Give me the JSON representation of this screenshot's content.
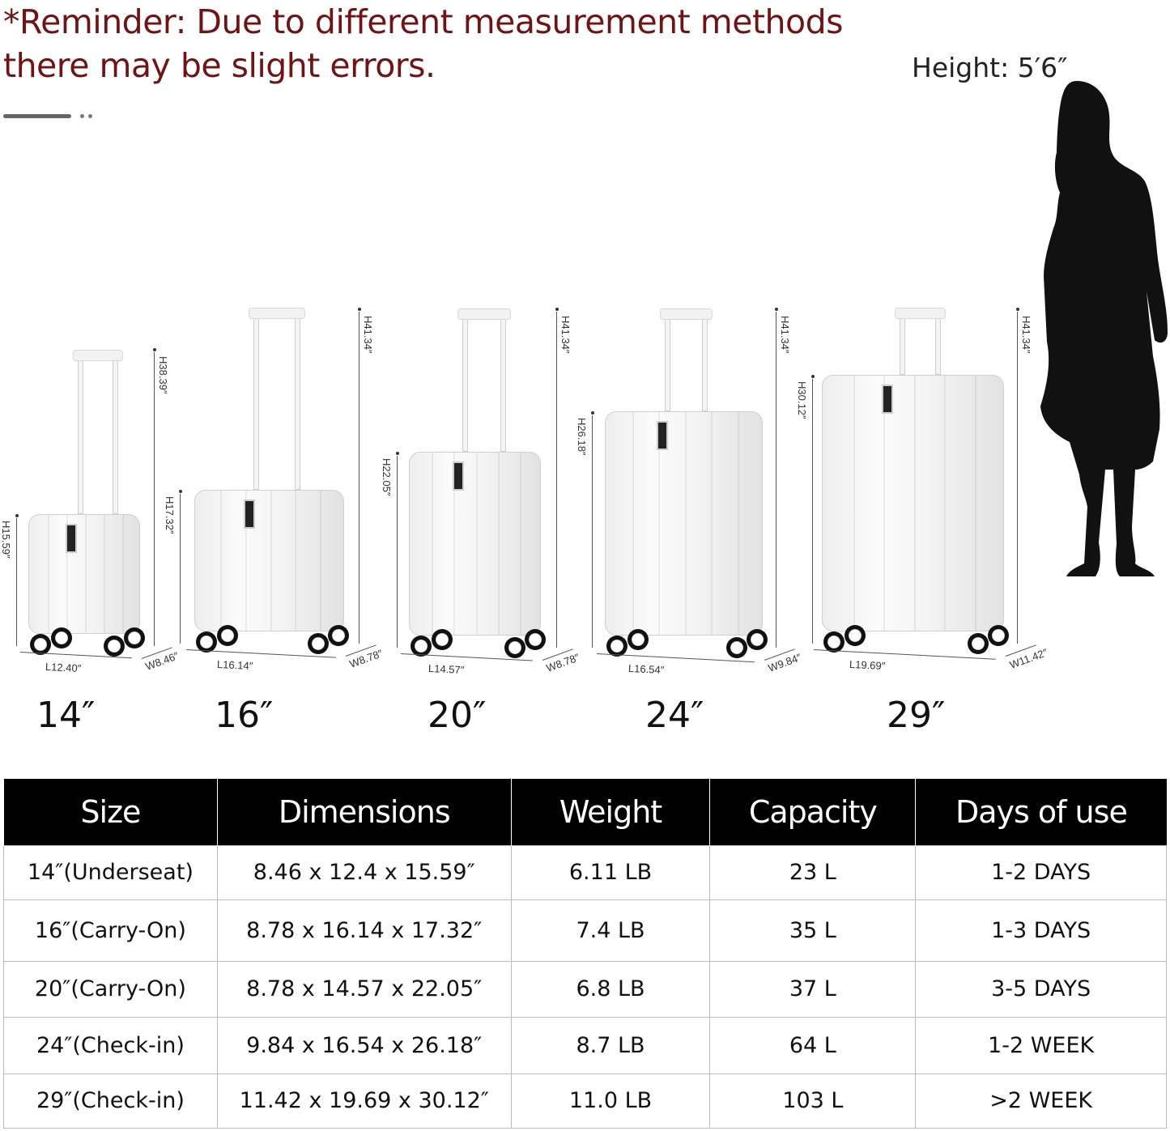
{
  "reminder": {
    "line1": "*Reminder: Due to different measurement methods",
    "line2": "there may be slight errors."
  },
  "person": {
    "height_label": "Height: 5′6″",
    "icon": "woman-silhouette"
  },
  "suitcases": [
    {
      "size": "14″",
      "left_h": "H15.59″",
      "right_h": "H38.39″",
      "length": "L12.40″",
      "width": "W8.46″"
    },
    {
      "size": "16″",
      "left_h": "H17.32″",
      "right_h": "H41.34″",
      "length": "L16.14″",
      "width": "W8.78″"
    },
    {
      "size": "20″",
      "left_h": "H22.05″",
      "right_h": "H41.34″",
      "length": "L14.57″",
      "width": "W8.78″"
    },
    {
      "size": "24″",
      "left_h": "H26.18″",
      "right_h": "H41.34″",
      "length": "L16.54″",
      "width": "W9.84″"
    },
    {
      "size": "29″",
      "left_h": "H30.12″",
      "right_h": "H41.34″",
      "length": "L19.69″",
      "width": "W11.42″"
    }
  ],
  "table": {
    "headers": [
      "Size",
      "Dimensions",
      "Weight",
      "Capacity",
      "Days of use"
    ],
    "rows": [
      [
        "14″(Underseat)",
        "8.46 x 12.4 x 15.59″",
        "6.11 LB",
        "23 L",
        "1-2 DAYS"
      ],
      [
        "16″(Carry-On)",
        "8.78 x 16.14 x 17.32″",
        "7.4 LB",
        "35 L",
        "1-3 DAYS"
      ],
      [
        "20″(Carry-On)",
        "8.78 x 14.57 x 22.05″",
        "6.8 LB",
        "37 L",
        "3-5 DAYS"
      ],
      [
        "24″(Check-in)",
        "9.84 x 16.54 x 26.18″",
        "8.7 LB",
        "64 L",
        "1-2 WEEK"
      ],
      [
        "29″(Check-in)",
        "11.42 x 19.69 x 30.12″",
        "11.0 LB",
        "103 L",
        ">2 WEEK"
      ]
    ]
  }
}
